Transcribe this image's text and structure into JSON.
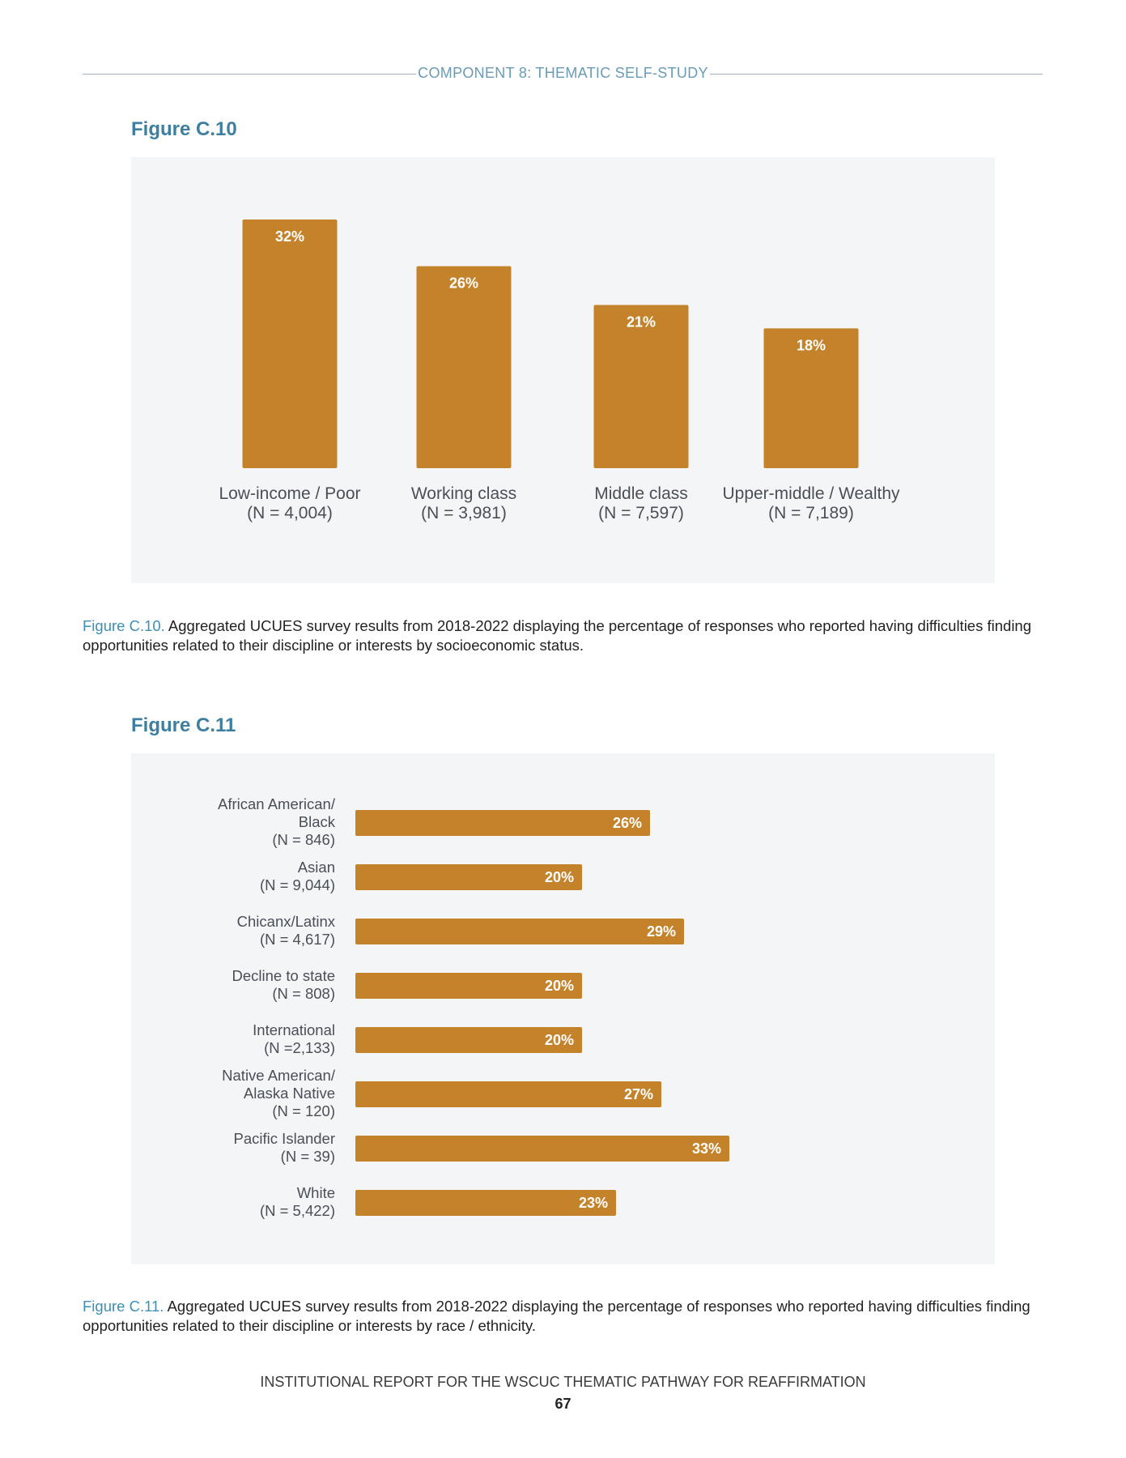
{
  "header": {
    "title": "COMPONENT 8: THEMATIC SELF-STUDY"
  },
  "figures": [
    {
      "title": "Figure C.10",
      "caption_lead": "Figure C.10.",
      "caption_text": "Aggregated UCUES survey results from 2018-2022 displaying the percentage of responses who reported having difficulties finding opportunities related to their discipline or interests by socioeconomic status."
    },
    {
      "title": "Figure C.11",
      "caption_lead": "Figure C.11.",
      "caption_text": "Aggregated UCUES survey results from 2018-2022 displaying the percentage of responses who reported having difficulties finding opportunities related to their discipline or interests by race / ethnicity."
    }
  ],
  "chart_data": [
    {
      "type": "bar",
      "orientation": "vertical",
      "categories": [
        [
          "Low-income / Poor",
          "(N = 4,004)"
        ],
        [
          "Working class",
          "(N = 3,981)"
        ],
        [
          "Middle class",
          "(N = 7,597)"
        ],
        [
          "Upper-middle / Wealthy",
          "(N = 7,189)"
        ]
      ],
      "values": [
        32,
        26,
        21,
        18
      ],
      "value_labels": [
        "32%",
        "26%",
        "21%",
        "18%"
      ],
      "ylim": [
        0,
        32
      ],
      "grid": false,
      "bar_color": "#c4832b"
    },
    {
      "type": "bar",
      "orientation": "horizontal",
      "categories": [
        [
          "African American/",
          "Black",
          "(N = 846)"
        ],
        [
          "Asian",
          "(N = 9,044)"
        ],
        [
          "Chicanx/Latinx",
          "(N = 4,617)"
        ],
        [
          "Decline to state",
          "(N = 808)"
        ],
        [
          "International",
          "(N =2,133)"
        ],
        [
          "Native American/",
          "Alaska Native",
          "(N = 120)"
        ],
        [
          "Pacific Islander",
          "(N = 39)"
        ],
        [
          "White",
          "(N = 5,422)"
        ]
      ],
      "values": [
        26,
        20,
        29,
        20,
        20,
        27,
        33,
        23
      ],
      "value_labels": [
        "26%",
        "20%",
        "29%",
        "20%",
        "20%",
        "27%",
        "33%",
        "23%"
      ],
      "xlim": [
        0,
        33
      ],
      "grid": false,
      "bar_color": "#c4832b"
    }
  ],
  "footer": {
    "title": "INSTITUTIONAL REPORT FOR THE WSCUC THEMATIC PATHWAY FOR REAFFIRMATION",
    "page_number": "67"
  },
  "colors": {
    "accent": "#3e7fa1",
    "bar": "#c4832b",
    "panel_background": "#f4f5f7",
    "bar_label": "#ffffff",
    "axis_label": "#4a4f57"
  }
}
